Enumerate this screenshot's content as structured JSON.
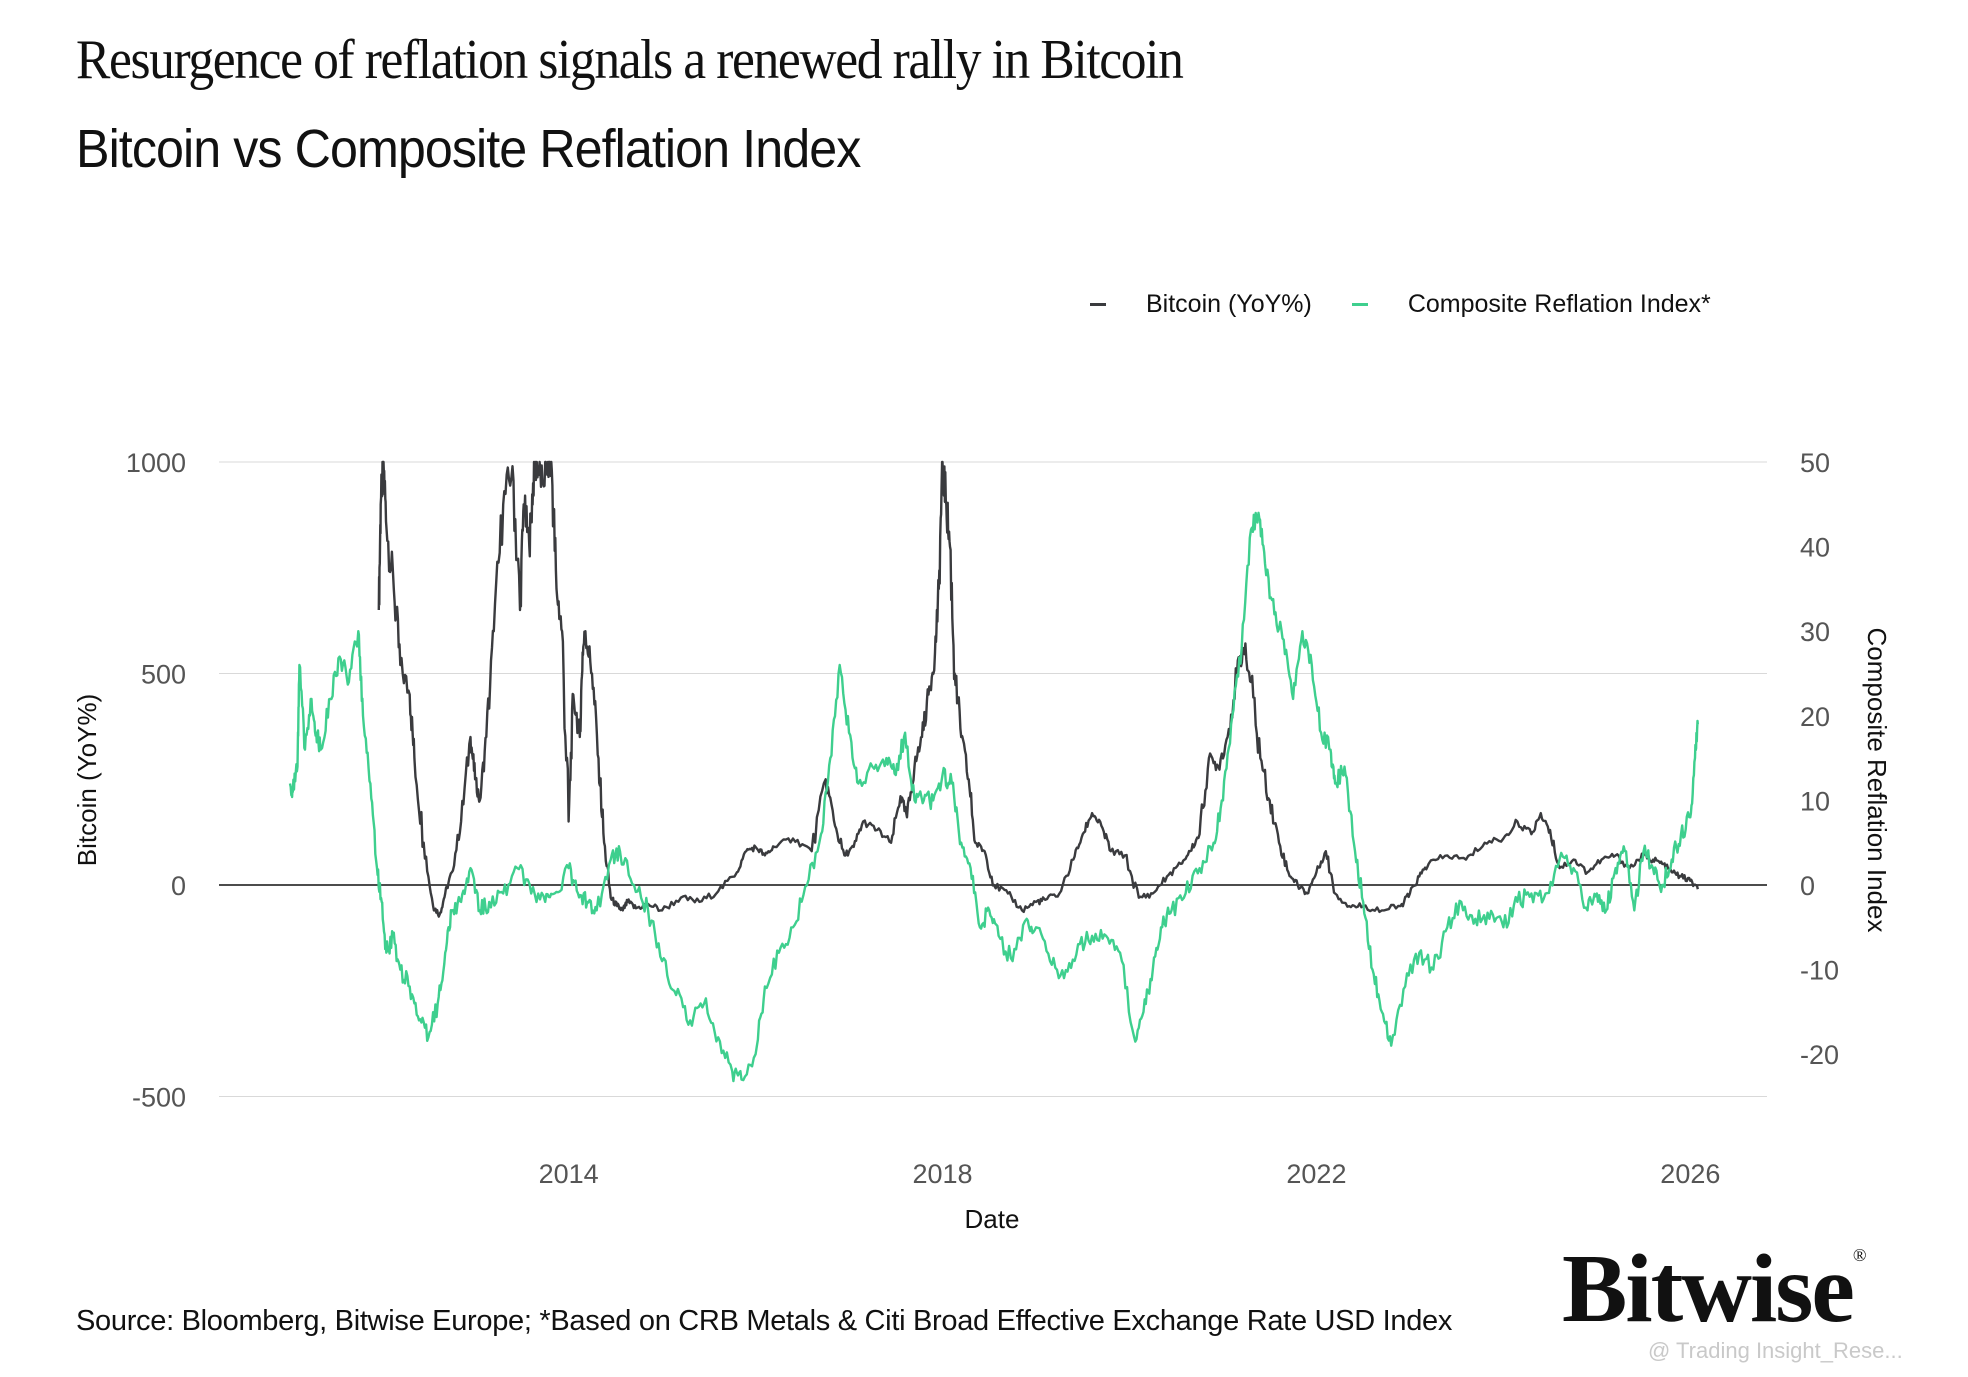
{
  "header": {
    "title": "Resurgence of reflation signals a renewed rally in Bitcoin",
    "subtitle": "Bitcoin vs Composite Reflation Index"
  },
  "footer": {
    "source": "Source: Bloomberg, Bitwise Europe; *Based on CRB Metals & Citi Broad Effective Exchange Rate USD Index",
    "logo": "Bitwise",
    "logo_mark": "®",
    "watermark": "@ Trading Insight_Rese..."
  },
  "colors": {
    "bitcoin": "#3a3b3e",
    "reflation": "#3ecf8e",
    "grid": "#d9d9d9",
    "zero_line": "#111111"
  },
  "chart_data": {
    "type": "line",
    "title": "Bitcoin vs Composite Reflation Index",
    "xlabel": "Date",
    "ylabel": "Bitcoin (YoY%)",
    "y2label": "Composite Reflation Index",
    "xlim": [
      2010.26,
      2026.82
    ],
    "ylim": [
      -600,
      1000
    ],
    "y2lim": [
      -30,
      50
    ],
    "x_ticks": [
      2014,
      2018,
      2022,
      2026
    ],
    "x_tick_labels": [
      "2014",
      "2018",
      "2022",
      "2026"
    ],
    "y_ticks": [
      -500,
      0,
      500,
      1000
    ],
    "y_tick_labels": [
      "-500",
      "0",
      "500",
      "1000"
    ],
    "y2_ticks": [
      -20,
      -10,
      0,
      10,
      20,
      30,
      40,
      50
    ],
    "y2_tick_labels": [
      "-20",
      "-10",
      "0",
      "10",
      "20",
      "30",
      "40",
      "50"
    ],
    "grid": "horizontal",
    "legend_position": "top-right",
    "legend": [
      "Bitcoin (YoY%)",
      "Composite Reflation Index*"
    ],
    "series": [
      {
        "name": "Bitcoin (YoY%)",
        "axis": "left",
        "x": [
          2011.97,
          2011.99,
          2012.02,
          2012.05,
          2012.13,
          2012.2,
          2012.3,
          2012.35,
          2012.45,
          2012.55,
          2012.62,
          2012.68,
          2012.75,
          2012.85,
          2012.95,
          2013.0,
          2013.05,
          2013.12,
          2013.2,
          2013.3,
          2013.4,
          2013.48,
          2013.52,
          2013.58,
          2013.62,
          2013.66,
          2013.72,
          2013.78,
          2013.82,
          2013.87,
          2013.93,
          2014.0,
          2014.05,
          2014.12,
          2014.15,
          2014.18,
          2014.25,
          2014.32,
          2014.38,
          2014.45,
          2014.52,
          2014.58,
          2014.63,
          2014.72,
          2014.85,
          2015.0,
          2015.2,
          2015.4,
          2015.6,
          2015.8,
          2015.9,
          2016.0,
          2016.1,
          2016.2,
          2016.4,
          2016.6,
          2016.75,
          2016.85,
          2016.95,
          2017.05,
          2017.15,
          2017.3,
          2017.45,
          2017.55,
          2017.62,
          2017.7,
          2017.78,
          2017.85,
          2017.92,
          2017.96,
          2018.0,
          2018.04,
          2018.08,
          2018.13,
          2018.2,
          2018.28,
          2018.35,
          2018.45,
          2018.55,
          2018.7,
          2018.85,
          2019.0,
          2019.1,
          2019.25,
          2019.4,
          2019.5,
          2019.6,
          2019.7,
          2019.8,
          2019.95,
          2020.1,
          2020.25,
          2020.4,
          2020.55,
          2020.65,
          2020.75,
          2020.85,
          2020.95,
          2021.05,
          2021.15,
          2021.22,
          2021.3,
          2021.4,
          2021.5,
          2021.6,
          2021.7,
          2021.8,
          2021.9,
          2022.0,
          2022.1,
          2022.2,
          2022.35,
          2022.5,
          2022.7,
          2022.9,
          2023.0,
          2023.1,
          2023.2,
          2023.4,
          2023.6,
          2023.8,
          2024.0,
          2024.15,
          2024.3,
          2024.4,
          2024.5,
          2024.6,
          2024.75,
          2024.9,
          2025.05,
          2025.2,
          2025.35,
          2025.5,
          2025.6,
          2025.7,
          2025.8,
          2025.9,
          2026.0,
          2026.08
        ],
        "values": [
          650,
          900,
          1000,
          850,
          700,
          520,
          450,
          300,
          100,
          -50,
          -70,
          -20,
          30,
          150,
          350,
          250,
          200,
          350,
          600,
          900,
          990,
          650,
          900,
          800,
          950,
          1000,
          950,
          1000,
          980,
          700,
          600,
          150,
          450,
          350,
          550,
          600,
          500,
          300,
          100,
          -30,
          -50,
          -60,
          -40,
          -55,
          -45,
          -60,
          -30,
          -40,
          -15,
          30,
          80,
          90,
          70,
          90,
          110,
          80,
          250,
          140,
          70,
          90,
          150,
          130,
          100,
          210,
          160,
          280,
          350,
          450,
          550,
          700,
          1000,
          900,
          800,
          500,
          350,
          250,
          100,
          80,
          0,
          -20,
          -60,
          -40,
          -35,
          -20,
          60,
          120,
          170,
          140,
          80,
          70,
          -30,
          -20,
          20,
          50,
          80,
          120,
          300,
          280,
          350,
          500,
          560,
          480,
          300,
          200,
          100,
          30,
          0,
          -20,
          30,
          80,
          -20,
          -50,
          -50,
          -60,
          -50,
          -20,
          20,
          50,
          70,
          60,
          100,
          110,
          150,
          120,
          170,
          130,
          40,
          60,
          30,
          60,
          70,
          40,
          70,
          60,
          50,
          30,
          20,
          10,
          -10
        ],
        "series_note": "values in YoY %, clipped at 1000 at top of axis"
      },
      {
        "name": "Composite Reflation Index*",
        "axis": "right",
        "x": [
          2011.02,
          2011.05,
          2011.1,
          2011.12,
          2011.18,
          2011.25,
          2011.3,
          2011.35,
          2011.45,
          2011.55,
          2011.65,
          2011.75,
          2011.8,
          2011.88,
          2011.95,
          2012.0,
          2012.05,
          2012.12,
          2012.2,
          2012.3,
          2012.4,
          2012.5,
          2012.6,
          2012.68,
          2012.75,
          2012.85,
          2012.95,
          2013.05,
          2013.15,
          2013.3,
          2013.45,
          2013.6,
          2013.75,
          2013.85,
          2014.0,
          2014.1,
          2014.2,
          2014.3,
          2014.45,
          2014.55,
          2014.7,
          2014.85,
          2015.0,
          2015.15,
          2015.3,
          2015.45,
          2015.6,
          2015.75,
          2015.85,
          2016.0,
          2016.1,
          2016.25,
          2016.4,
          2016.55,
          2016.7,
          2016.8,
          2016.9,
          2017.0,
          2017.1,
          2017.25,
          2017.4,
          2017.5,
          2017.6,
          2017.7,
          2017.8,
          2017.9,
          2018.0,
          2018.1,
          2018.2,
          2018.3,
          2018.4,
          2018.5,
          2018.6,
          2018.75,
          2018.9,
          2019.0,
          2019.15,
          2019.3,
          2019.45,
          2019.6,
          2019.75,
          2019.9,
          2020.05,
          2020.15,
          2020.25,
          2020.35,
          2020.45,
          2020.6,
          2020.75,
          2020.9,
          2021.0,
          2021.1,
          2021.2,
          2021.3,
          2021.38,
          2021.45,
          2021.55,
          2021.65,
          2021.75,
          2021.85,
          2021.95,
          2022.05,
          2022.15,
          2022.2,
          2022.3,
          2022.4,
          2022.5,
          2022.6,
          2022.7,
          2022.8,
          2022.95,
          2023.1,
          2023.25,
          2023.4,
          2023.55,
          2023.7,
          2023.85,
          2024.0,
          2024.15,
          2024.3,
          2024.45,
          2024.6,
          2024.75,
          2024.9,
          2025.0,
          2025.1,
          2025.2,
          2025.3,
          2025.4,
          2025.5,
          2025.6,
          2025.7,
          2025.8,
          2025.9,
          2026.0,
          2026.05,
          2026.08
        ],
        "values": [
          12,
          11,
          14,
          26,
          16,
          22,
          18,
          16,
          22,
          27,
          24,
          30,
          20,
          12,
          2,
          -2,
          -8,
          -6,
          -10,
          -12,
          -16,
          -18,
          -14,
          -8,
          -3,
          -2,
          2,
          -3,
          -2,
          -1,
          2,
          -1,
          -2,
          -1,
          2,
          -1,
          -2,
          -3,
          3,
          4,
          0,
          -3,
          -9,
          -13,
          -16,
          -14,
          -18,
          -22,
          -23,
          -20,
          -12,
          -8,
          -5,
          0,
          6,
          15,
          26,
          18,
          12,
          14,
          15,
          13,
          18,
          10,
          10,
          10,
          13,
          12,
          5,
          2,
          -5,
          -3,
          -6,
          -9,
          -4,
          -5,
          -9,
          -11,
          -7,
          -6,
          -6,
          -8,
          -18,
          -15,
          -10,
          -5,
          -3,
          -1,
          2,
          5,
          10,
          20,
          28,
          42,
          44,
          38,
          32,
          29,
          22,
          30,
          26,
          18,
          16,
          12,
          14,
          5,
          -2,
          -10,
          -15,
          -19,
          -12,
          -8,
          -10,
          -5,
          -2,
          -4,
          -4,
          -5,
          -2,
          -1,
          -1,
          3,
          2,
          -3,
          -1,
          -3,
          2,
          4,
          -3,
          4,
          2,
          0,
          3,
          6,
          8,
          15,
          19
        ],
        "series_note": "index values on right axis"
      }
    ]
  }
}
